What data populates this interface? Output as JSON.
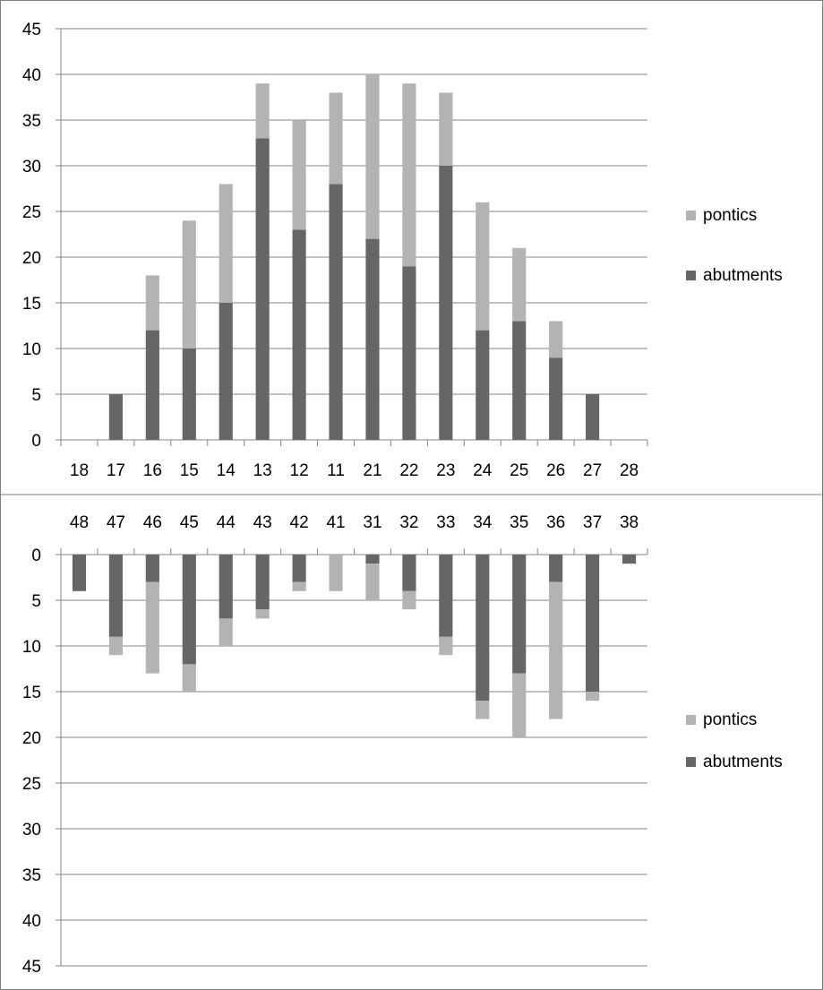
{
  "colors": {
    "abutments": "#666666",
    "pontics": "#b3b3b3",
    "gridline": "#868686",
    "frame": "#7f7f7f"
  },
  "chart_data": [
    {
      "type": "bar",
      "stacked": true,
      "orientation": "upward",
      "categories": [
        "18",
        "17",
        "16",
        "15",
        "14",
        "13",
        "12",
        "11",
        "21",
        "22",
        "23",
        "24",
        "25",
        "26",
        "27",
        "28"
      ],
      "series": [
        {
          "name": "abutments",
          "values": [
            0,
            5,
            12,
            10,
            15,
            33,
            23,
            28,
            22,
            19,
            30,
            12,
            13,
            9,
            5,
            0
          ]
        },
        {
          "name": "pontics",
          "values": [
            0,
            0,
            6,
            14,
            13,
            6,
            12,
            10,
            18,
            20,
            8,
            14,
            8,
            4,
            0,
            0
          ]
        }
      ],
      "y_ticks": [
        "0",
        "5",
        "10",
        "15",
        "20",
        "25",
        "30",
        "35",
        "40",
        "45"
      ],
      "ylim": [
        0,
        45
      ],
      "x_axis_position": "bottom",
      "grid": true,
      "legend": {
        "position": "right",
        "entries": [
          "pontics",
          "abutments"
        ]
      }
    },
    {
      "type": "bar",
      "stacked": true,
      "orientation": "downward",
      "categories": [
        "48",
        "47",
        "46",
        "45",
        "44",
        "43",
        "42",
        "41",
        "31",
        "32",
        "33",
        "34",
        "35",
        "36",
        "37",
        "38"
      ],
      "series": [
        {
          "name": "abutments",
          "values": [
            4,
            9,
            3,
            12,
            7,
            6,
            3,
            0,
            1,
            4,
            9,
            16,
            13,
            3,
            15,
            1
          ]
        },
        {
          "name": "pontics",
          "values": [
            0,
            2,
            10,
            3,
            3,
            1,
            1,
            4,
            4,
            2,
            2,
            2,
            7,
            15,
            1,
            0
          ]
        }
      ],
      "y_ticks": [
        "0",
        "5",
        "10",
        "15",
        "20",
        "25",
        "30",
        "35",
        "40",
        "45"
      ],
      "ylim": [
        0,
        45
      ],
      "y_axis_reversed": true,
      "x_axis_position": "top",
      "grid": true,
      "legend": {
        "position": "right",
        "entries": [
          "pontics",
          "abutments"
        ]
      }
    }
  ]
}
